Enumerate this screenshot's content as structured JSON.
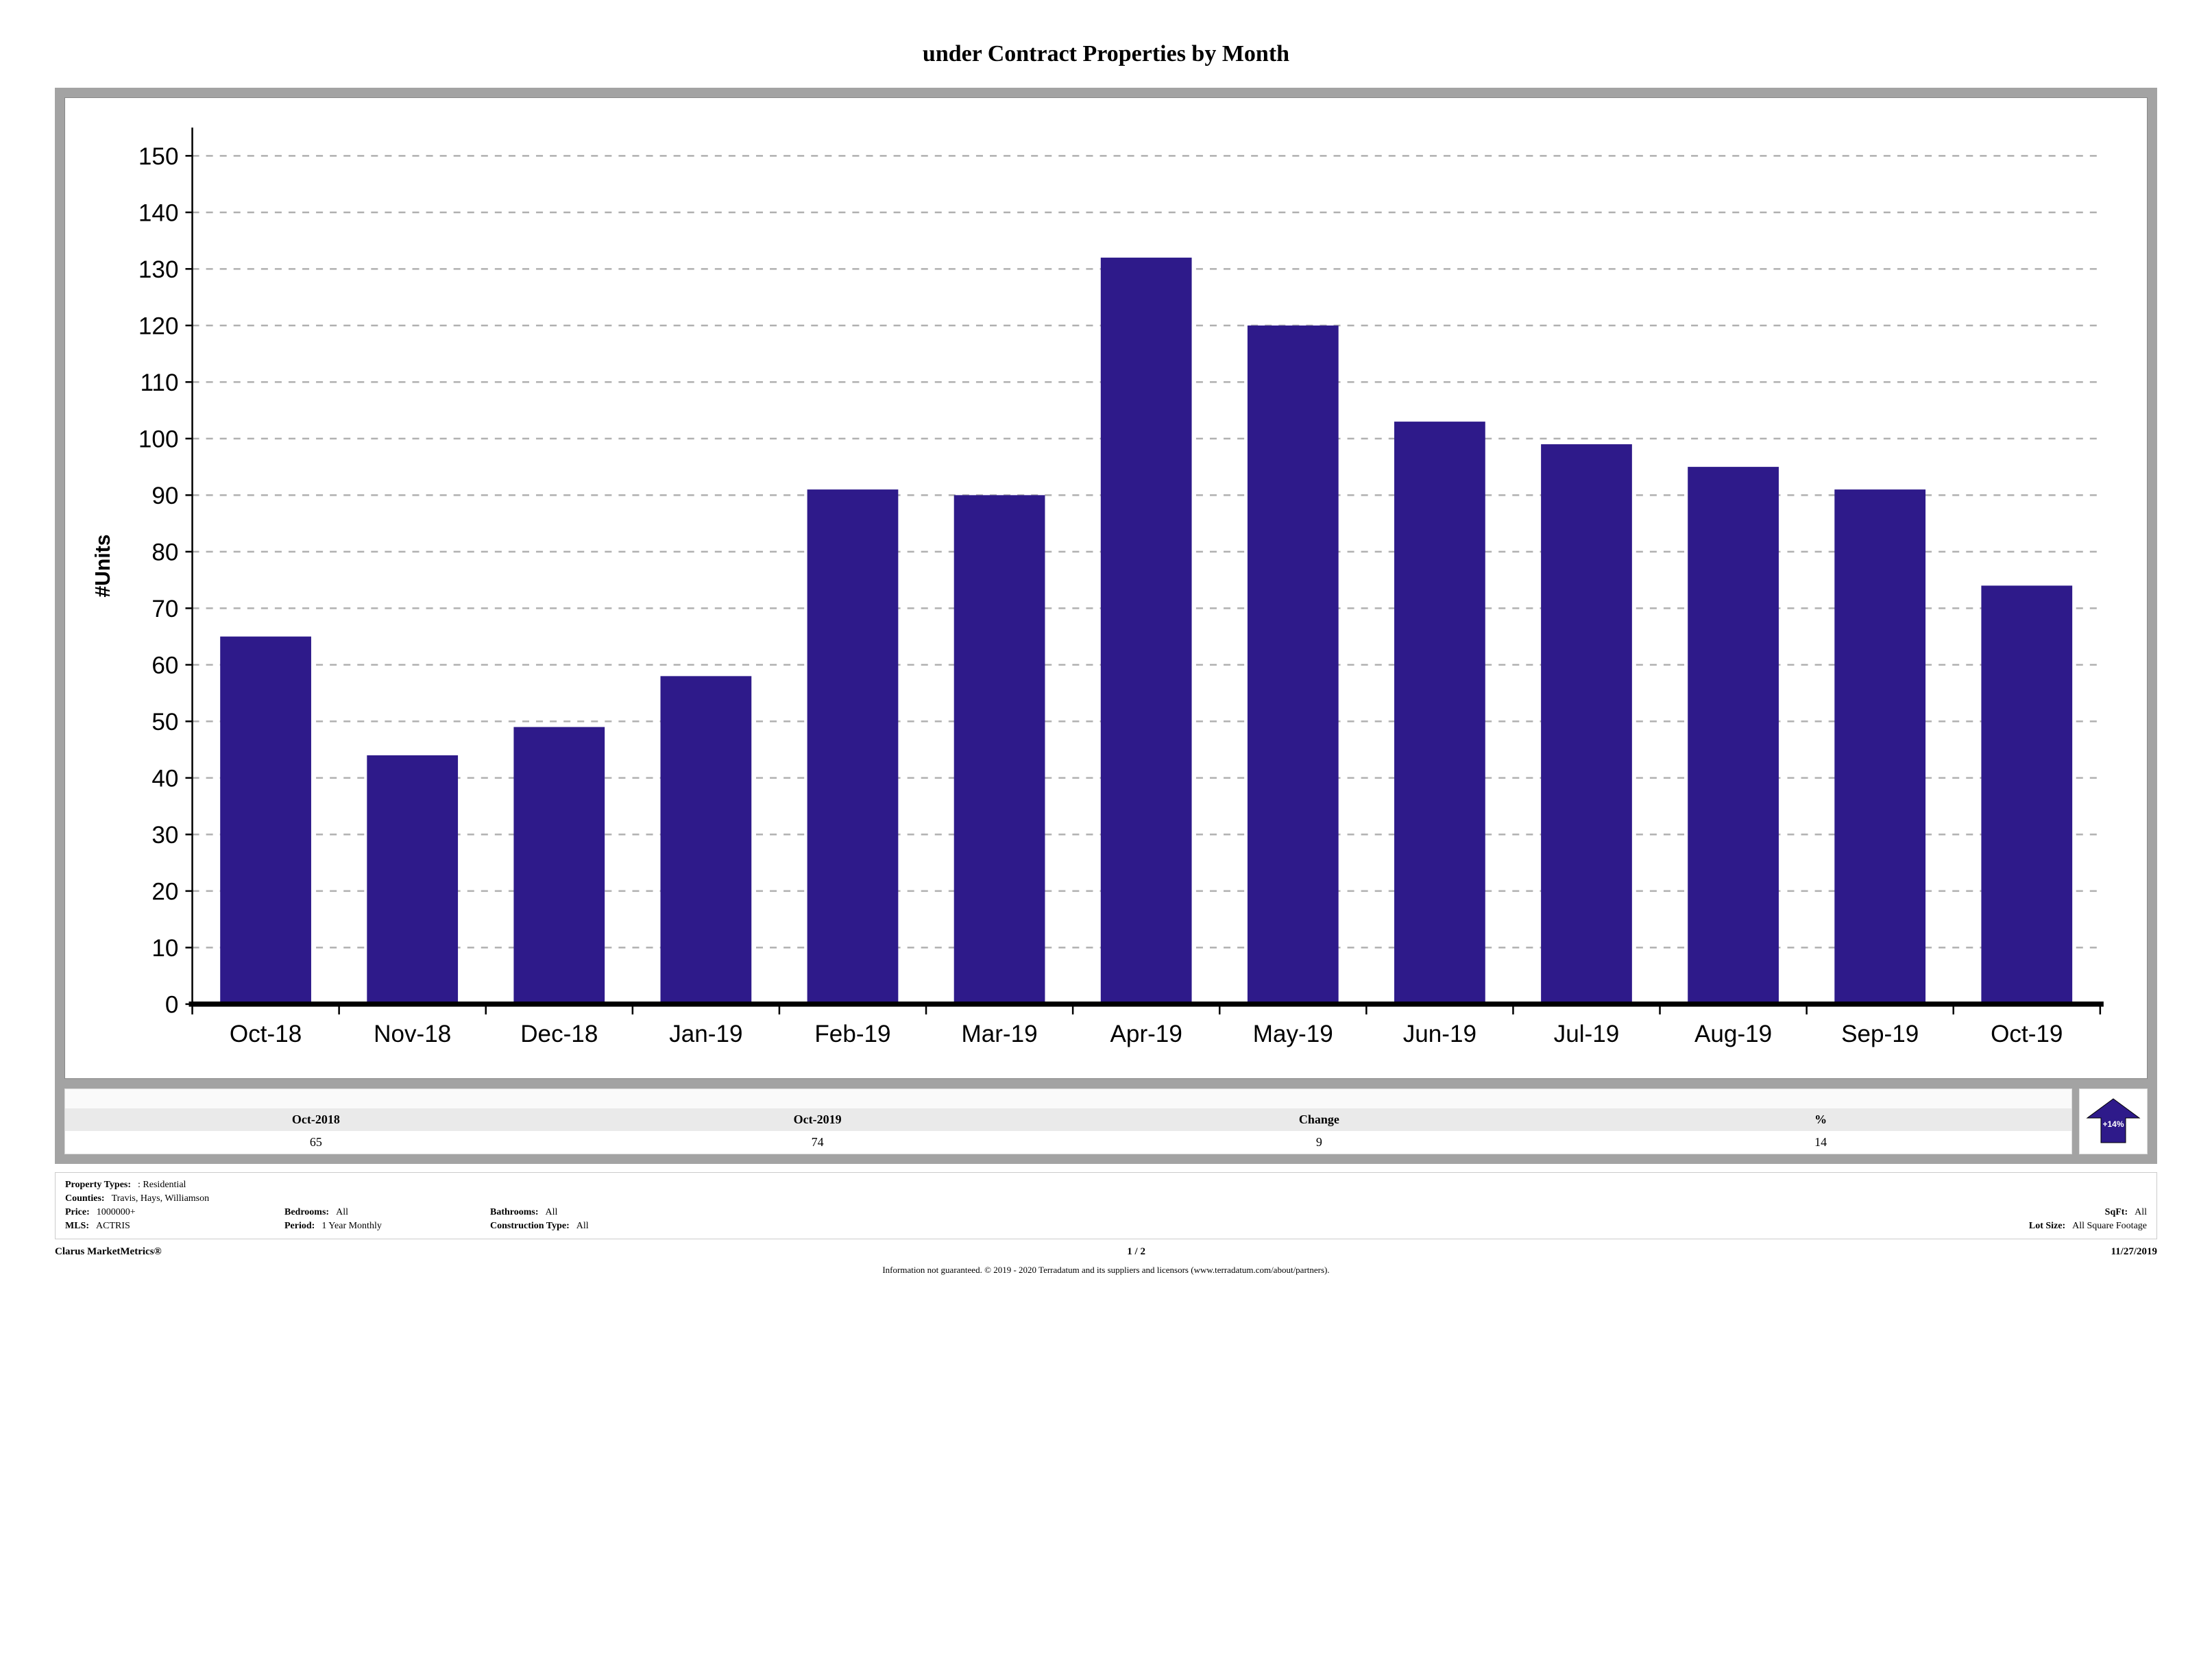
{
  "title": "under Contract Properties by Month",
  "chart": {
    "type": "bar",
    "y_axis_label": "#Units",
    "categories": [
      "Oct-18",
      "Nov-18",
      "Dec-18",
      "Jan-19",
      "Feb-19",
      "Mar-19",
      "Apr-19",
      "May-19",
      "Jun-19",
      "Jul-19",
      "Aug-19",
      "Sep-19",
      "Oct-19"
    ],
    "values": [
      65,
      44,
      49,
      58,
      91,
      90,
      132,
      120,
      103,
      99,
      95,
      91,
      74
    ],
    "bar_color": "#2e1a8a",
    "ylim_min": 0,
    "ylim_max": 155,
    "ytick_step": 10,
    "grid_color": "#b0b0b0",
    "baseline_color": "#000000",
    "tick_fontsize": 14,
    "bar_width_ratio": 0.62
  },
  "summary": {
    "headers": [
      "Oct-2018",
      "Oct-2019",
      "Change",
      "%"
    ],
    "values": [
      "65",
      "74",
      "9",
      "14"
    ],
    "change_pct_label": "+14%",
    "arrow_color": "#2e1a8a",
    "arrow_direction": "up"
  },
  "filters": {
    "property_types": {
      "label": "Property Types:",
      "value": ": Residential"
    },
    "counties": {
      "label": "Counties:",
      "value": "Travis, Hays, Williamson"
    },
    "price": {
      "label": "Price:",
      "value": "1000000+"
    },
    "bedrooms": {
      "label": "Bedrooms:",
      "value": "All"
    },
    "bathrooms": {
      "label": "Bathrooms:",
      "value": "All"
    },
    "sqft": {
      "label": "SqFt:",
      "value": "All"
    },
    "mls": {
      "label": "MLS:",
      "value": "ACTRIS"
    },
    "period": {
      "label": "Period:",
      "value": "1 Year Monthly"
    },
    "construction_type": {
      "label": "Construction Type:",
      "value": "All"
    },
    "lot_size": {
      "label": "Lot Size:",
      "value": "All Square Footage"
    }
  },
  "footer": {
    "brand": "Clarus MarketMetrics®",
    "page": "1 / 2",
    "date": "11/27/2019"
  },
  "disclaimer": "Information not guaranteed. © 2019 - 2020 Terradatum and its suppliers and licensors (www.terradatum.com/about/partners)."
}
